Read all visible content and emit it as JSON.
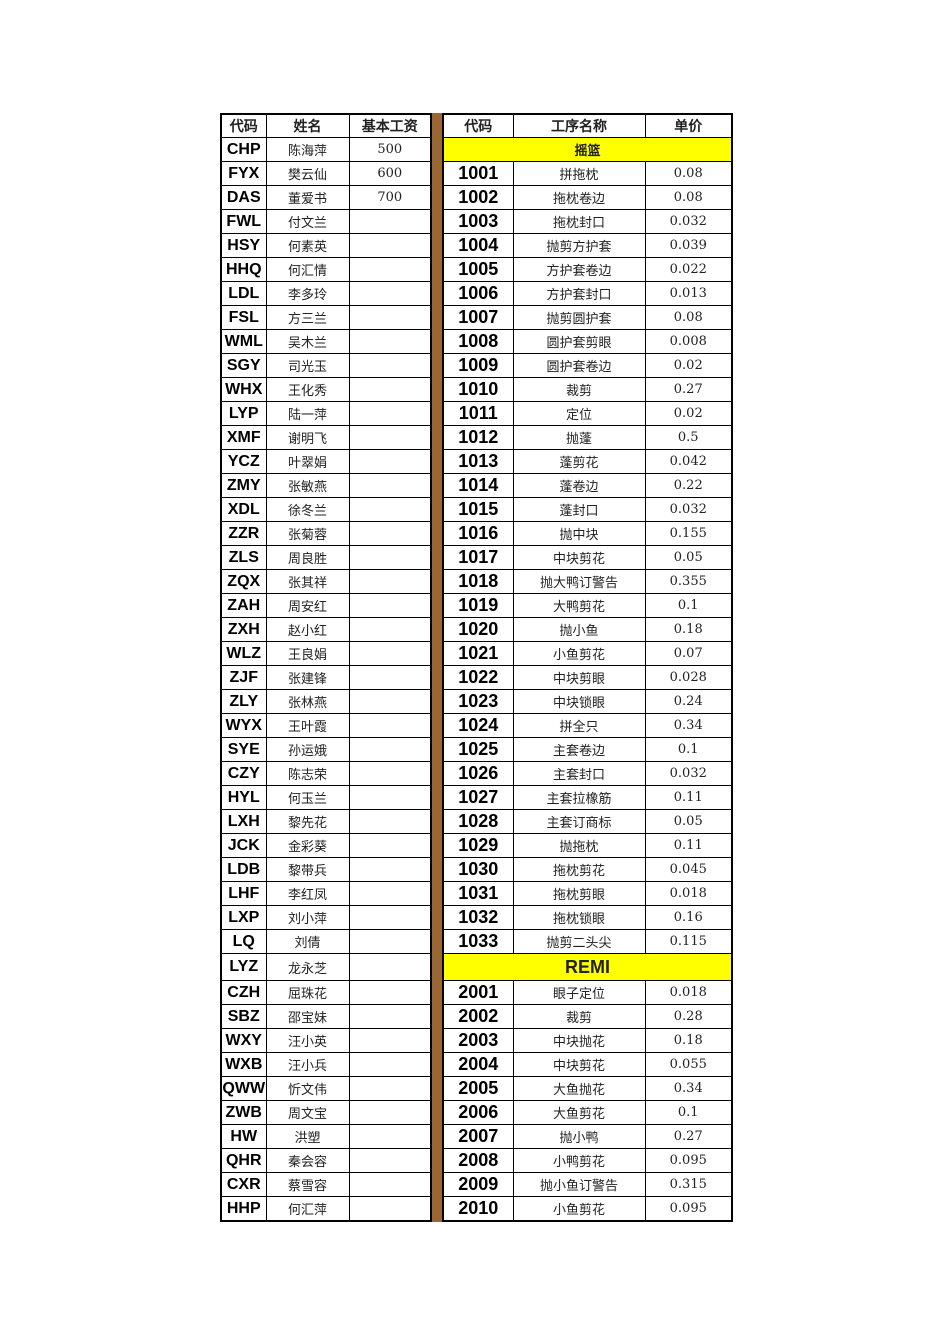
{
  "left": {
    "headers": [
      "代码",
      "姓名",
      "基本工资"
    ],
    "rows": [
      [
        "CHP",
        "陈海萍",
        "500"
      ],
      [
        "FYX",
        "樊云仙",
        "600"
      ],
      [
        "DAS",
        "董爱书",
        "700"
      ],
      [
        "FWL",
        "付文兰",
        ""
      ],
      [
        "HSY",
        "何素英",
        ""
      ],
      [
        "HHQ",
        "何汇情",
        ""
      ],
      [
        "LDL",
        "李多玲",
        ""
      ],
      [
        "FSL",
        "方三兰",
        ""
      ],
      [
        "WML",
        "吴木兰",
        ""
      ],
      [
        "SGY",
        "司光玉",
        ""
      ],
      [
        "WHX",
        "王化秀",
        ""
      ],
      [
        "LYP",
        "陆一萍",
        ""
      ],
      [
        "XMF",
        "谢明飞",
        ""
      ],
      [
        "YCZ",
        "叶翠娟",
        ""
      ],
      [
        "ZMY",
        "张敏燕",
        ""
      ],
      [
        "XDL",
        "徐冬兰",
        ""
      ],
      [
        "ZZR",
        "张菊蓉",
        ""
      ],
      [
        "ZLS",
        "周良胜",
        ""
      ],
      [
        "ZQX",
        "张其祥",
        ""
      ],
      [
        "ZAH",
        "周安红",
        ""
      ],
      [
        "ZXH",
        "赵小红",
        ""
      ],
      [
        "WLZ",
        "王良娟",
        ""
      ],
      [
        "ZJF",
        "张建锋",
        ""
      ],
      [
        "ZLY",
        "张林燕",
        ""
      ],
      [
        "WYX",
        "王叶霞",
        ""
      ],
      [
        "SYE",
        "孙运娥",
        ""
      ],
      [
        "CZY",
        "陈志荣",
        ""
      ],
      [
        "HYL",
        "何玉兰",
        ""
      ],
      [
        "LXH",
        "黎先花",
        ""
      ],
      [
        "JCK",
        "金彩葵",
        ""
      ],
      [
        "LDB",
        "黎带兵",
        ""
      ],
      [
        "LHF",
        "李红凤",
        ""
      ],
      [
        "LXP",
        "刘小萍",
        ""
      ],
      [
        "LQ",
        "刘倩",
        ""
      ],
      [
        "LYZ",
        "龙永芝",
        ""
      ],
      [
        "CZH",
        "屈珠花",
        ""
      ],
      [
        "SBZ",
        "邵宝妹",
        ""
      ],
      [
        "WXY",
        "汪小英",
        ""
      ],
      [
        "WXB",
        "汪小兵",
        ""
      ],
      [
        "QWW",
        "忻文伟",
        ""
      ],
      [
        "ZWB",
        "周文宝",
        ""
      ],
      [
        "HW",
        "洪塑",
        ""
      ],
      [
        "QHR",
        "秦会容",
        ""
      ],
      [
        "CXR",
        "蔡雪容",
        ""
      ],
      [
        "HHP",
        "何汇萍",
        ""
      ]
    ]
  },
  "right": {
    "headers": [
      "代码",
      "工序名称",
      "单价"
    ],
    "rows": [
      {
        "section": "摇篮"
      },
      [
        "1001",
        "拼拖枕",
        "0.08"
      ],
      [
        "1002",
        "拖枕卷边",
        "0.08"
      ],
      [
        "1003",
        "拖枕封口",
        "0.032"
      ],
      [
        "1004",
        "抛剪方护套",
        "0.039"
      ],
      [
        "1005",
        "方护套卷边",
        "0.022"
      ],
      [
        "1006",
        "方护套封口",
        "0.013"
      ],
      [
        "1007",
        "抛剪圆护套",
        "0.08"
      ],
      [
        "1008",
        "圆护套剪眼",
        "0.008"
      ],
      [
        "1009",
        "圆护套卷边",
        "0.02"
      ],
      [
        "1010",
        "裁剪",
        "0.27"
      ],
      [
        "1011",
        "定位",
        "0.02"
      ],
      [
        "1012",
        "抛蓬",
        "0.5"
      ],
      [
        "1013",
        "蓬剪花",
        "0.042"
      ],
      [
        "1014",
        "蓬卷边",
        "0.22"
      ],
      [
        "1015",
        "蓬封口",
        "0.032"
      ],
      [
        "1016",
        "抛中块",
        "0.155"
      ],
      [
        "1017",
        "中块剪花",
        "0.05"
      ],
      [
        "1018",
        "抛大鸭订警告",
        "0.355"
      ],
      [
        "1019",
        "大鸭剪花",
        "0.1"
      ],
      [
        "1020",
        "抛小鱼",
        "0.18"
      ],
      [
        "1021",
        "小鱼剪花",
        "0.07"
      ],
      [
        "1022",
        "中块剪眼",
        "0.028"
      ],
      [
        "1023",
        "中块锁眼",
        "0.24"
      ],
      [
        "1024",
        "拼全只",
        "0.34"
      ],
      [
        "1025",
        "主套卷边",
        "0.1"
      ],
      [
        "1026",
        "主套封口",
        "0.032"
      ],
      [
        "1027",
        "主套拉橡筋",
        "0.11"
      ],
      [
        "1028",
        "主套订商标",
        "0.05"
      ],
      [
        "1029",
        "抛拖枕",
        "0.11"
      ],
      [
        "1030",
        "拖枕剪花",
        "0.045"
      ],
      [
        "1031",
        "拖枕剪眼",
        "0.018"
      ],
      [
        "1032",
        "拖枕锁眼",
        "0.16"
      ],
      [
        "1033",
        "抛剪二头尖",
        "0.115"
      ],
      {
        "section": "REMI"
      },
      [
        "2001",
        "眼子定位",
        "0.018"
      ],
      [
        "2002",
        "裁剪",
        "0.28"
      ],
      [
        "2003",
        "中块抛花",
        "0.18"
      ],
      [
        "2004",
        "中块剪花",
        "0.055"
      ],
      [
        "2005",
        "大鱼抛花",
        "0.34"
      ],
      [
        "2006",
        "大鱼剪花",
        "0.1"
      ],
      [
        "2007",
        "抛小鸭",
        "0.27"
      ],
      [
        "2008",
        "小鸭剪花",
        "0.095"
      ],
      [
        "2009",
        "抛小鱼订警告",
        "0.315"
      ],
      [
        "2010",
        "小鱼剪花",
        "0.095"
      ]
    ]
  }
}
